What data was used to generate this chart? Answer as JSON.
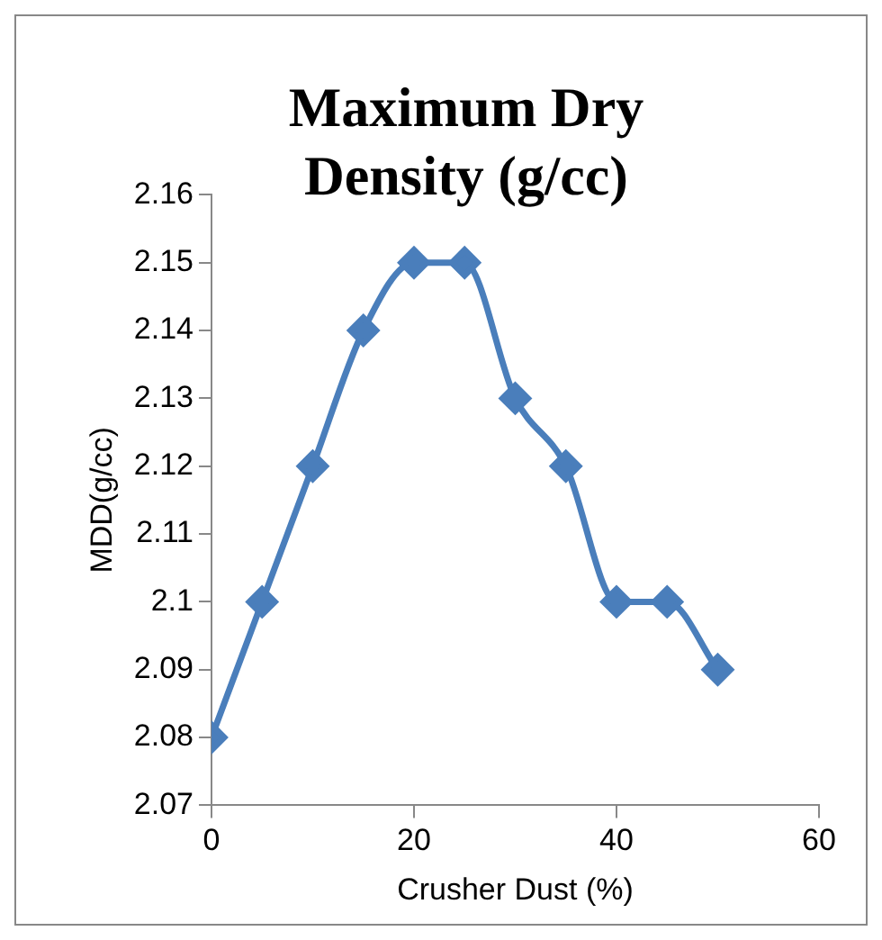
{
  "chart_data": {
    "type": "line",
    "title": "Maximum Dry Density (g/cc)",
    "xlabel": "Crusher Dust (%)",
    "ylabel": "MDD(g/cc)",
    "x": [
      0,
      5,
      10,
      15,
      20,
      25,
      30,
      35,
      40,
      45,
      50
    ],
    "series": [
      {
        "color": "#4a7ebb",
        "values": [
          2.08,
          2.1,
          2.12,
          2.14,
          2.15,
          2.15,
          2.13,
          2.12,
          2.1,
          2.1,
          2.09
        ]
      }
    ],
    "xlim": [
      0,
      60
    ],
    "xticks": [
      0,
      20,
      40,
      60
    ],
    "ylim": [
      2.07,
      2.16
    ],
    "yticks": [
      2.07,
      2.08,
      2.09,
      2.1,
      2.11,
      2.12,
      2.13,
      2.14,
      2.15,
      2.16
    ],
    "grid": false,
    "legend": false,
    "marker": "diamond",
    "line_style": "solid"
  }
}
